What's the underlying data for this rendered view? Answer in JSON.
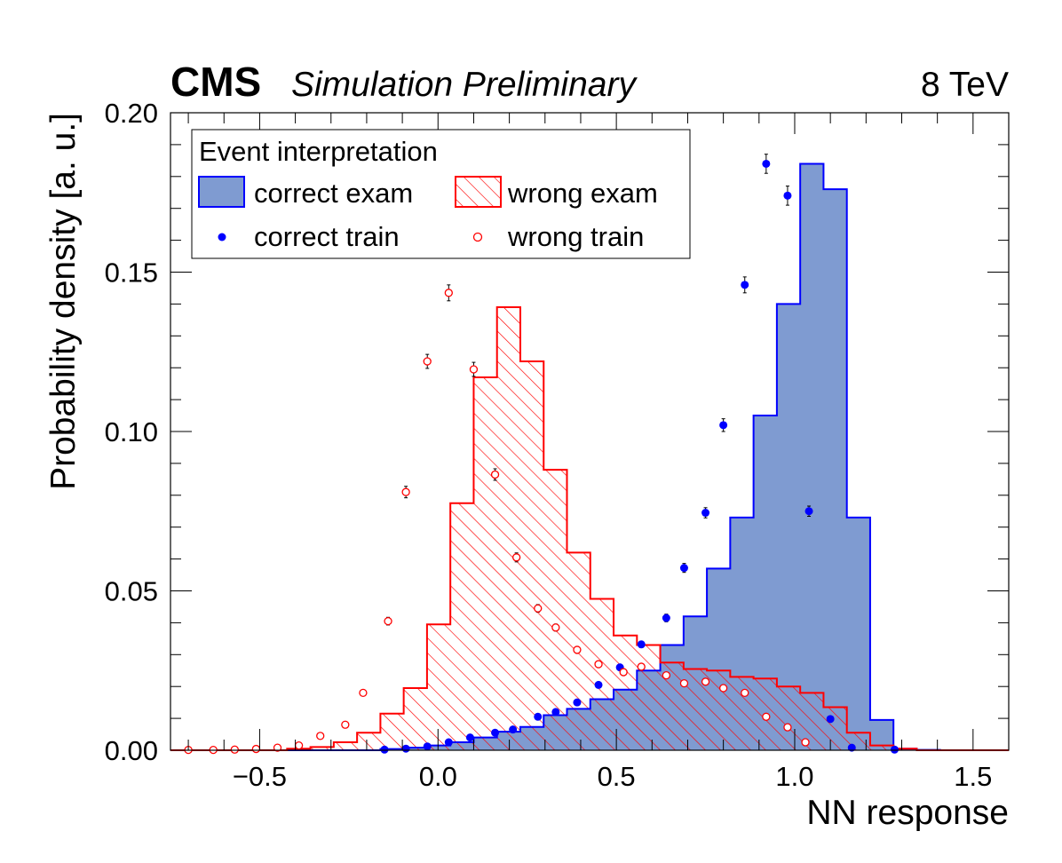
{
  "header": {
    "experiment": "CMS",
    "status": "Simulation Preliminary",
    "energy": "8 TeV"
  },
  "colors": {
    "correct": "#0000ff",
    "correct_fill": "#7f9bd1",
    "wrong": "#ff0000"
  },
  "legend": {
    "title": "Event interpretation",
    "entries": [
      {
        "label": "correct exam",
        "style": "filled-box"
      },
      {
        "label": "wrong exam",
        "style": "hatched-box"
      },
      {
        "label": "correct train",
        "style": "filled-marker"
      },
      {
        "label": "wrong train",
        "style": "open-marker"
      }
    ]
  },
  "chart_data": {
    "type": "histogram",
    "xlabel": "NN response",
    "ylabel": "Probability density [a. u.]",
    "xlim": [
      -0.75,
      1.6
    ],
    "ylim": [
      0,
      0.2
    ],
    "xticks": [
      -0.5,
      0.0,
      0.5,
      1.0,
      1.5
    ],
    "xtick_labels": [
      "−0.5",
      "0.0",
      "0.5",
      "1.0",
      "1.5"
    ],
    "yticks": [
      0.0,
      0.05,
      0.1,
      0.15,
      0.2
    ],
    "ytick_labels": [
      "0.00",
      "0.05",
      "0.10",
      "0.15",
      "0.20"
    ],
    "legend_position": "top-left",
    "bin_edges": [
      -0.75,
      -0.6846,
      -0.6192,
      -0.5538,
      -0.4885,
      -0.4231,
      -0.3577,
      -0.2923,
      -0.2269,
      -0.1615,
      -0.0962,
      -0.0308,
      0.0346,
      0.1,
      0.1654,
      0.2308,
      0.2962,
      0.3615,
      0.4269,
      0.4923,
      0.5577,
      0.6231,
      0.6885,
      0.7538,
      0.8192,
      0.8846,
      0.95,
      1.0154,
      1.0808,
      1.1462,
      1.2115,
      1.2769,
      1.3423,
      1.4077,
      1.4731,
      1.5385,
      1.6
    ],
    "series": [
      {
        "name": "correct exam",
        "kind": "hist-filled",
        "values": [
          0,
          0,
          0,
          0,
          0,
          0,
          0,
          0,
          0,
          0.0004,
          0.0008,
          0.0015,
          0.0025,
          0.004,
          0.0058,
          0.0073,
          0.011,
          0.013,
          0.016,
          0.019,
          0.025,
          0.033,
          0.042,
          0.057,
          0.073,
          0.105,
          0.14,
          0.184,
          0.176,
          0.073,
          0.0095,
          0.0005,
          0.0001,
          0,
          0,
          0
        ]
      },
      {
        "name": "wrong exam",
        "kind": "hist-hatched",
        "values": [
          0,
          0,
          0,
          0,
          0,
          0.0005,
          0.001,
          0.0025,
          0.0055,
          0.0115,
          0.0195,
          0.0395,
          0.0775,
          0.117,
          0.139,
          0.122,
          0.088,
          0.062,
          0.0475,
          0.036,
          0.033,
          0.0275,
          0.0255,
          0.025,
          0.023,
          0.0225,
          0.02,
          0.018,
          0.0135,
          0.0055,
          0.0015,
          0.0005,
          0,
          0,
          0,
          0
        ]
      },
      {
        "name": "correct train",
        "kind": "points-filled",
        "x": [
          -0.15,
          -0.09,
          -0.03,
          0.03,
          0.09,
          0.16,
          0.21,
          0.28,
          0.33,
          0.39,
          0.45,
          0.51,
          0.57,
          0.64,
          0.69,
          0.75,
          0.8,
          0.86,
          0.92,
          0.98,
          1.04,
          1.1,
          1.16,
          1.28
        ],
        "y": [
          0.0002,
          0.0005,
          0.0012,
          0.0025,
          0.004,
          0.0055,
          0.0065,
          0.0105,
          0.012,
          0.015,
          0.0205,
          0.026,
          0.0332,
          0.0415,
          0.0572,
          0.0745,
          0.102,
          0.146,
          0.184,
          0.174,
          0.075,
          0.0098,
          0.0008,
          0.0002
        ],
        "err": [
          0.0001,
          0.0002,
          0.0003,
          0.0003,
          0.0004,
          0.0005,
          0.0005,
          0.0006,
          0.0006,
          0.0007,
          0.0008,
          0.0009,
          0.001,
          0.0012,
          0.0014,
          0.0016,
          0.002,
          0.0025,
          0.003,
          0.003,
          0.0016,
          0.0006,
          0.0002,
          0.0001
        ]
      },
      {
        "name": "wrong train",
        "kind": "points-open",
        "x": [
          -0.7,
          -0.63,
          -0.57,
          -0.51,
          -0.45,
          -0.39,
          -0.33,
          -0.26,
          -0.21,
          -0.14,
          -0.09,
          -0.03,
          0.03,
          0.1,
          0.16,
          0.22,
          0.28,
          0.33,
          0.39,
          0.45,
          0.52,
          0.57,
          0.64,
          0.69,
          0.75,
          0.8,
          0.86,
          0.92,
          0.98,
          1.03
        ],
        "y": [
          0.0001,
          0.0001,
          0.0002,
          0.0004,
          0.0008,
          0.0015,
          0.0045,
          0.008,
          0.018,
          0.0405,
          0.081,
          0.122,
          0.1435,
          0.1195,
          0.0865,
          0.0605,
          0.0445,
          0.0385,
          0.0315,
          0.027,
          0.0245,
          0.0262,
          0.0235,
          0.021,
          0.0215,
          0.0195,
          0.018,
          0.0105,
          0.0072,
          0.0025
        ],
        "err": [
          0.0001,
          0.0001,
          0.0001,
          0.0001,
          0.0002,
          0.0002,
          0.0004,
          0.0005,
          0.0008,
          0.0012,
          0.0018,
          0.0022,
          0.0025,
          0.0022,
          0.0018,
          0.0014,
          0.0012,
          0.0011,
          0.001,
          0.0009,
          0.0009,
          0.0009,
          0.0009,
          0.0008,
          0.0008,
          0.0008,
          0.0007,
          0.0006,
          0.0005,
          0.0003
        ]
      }
    ]
  }
}
